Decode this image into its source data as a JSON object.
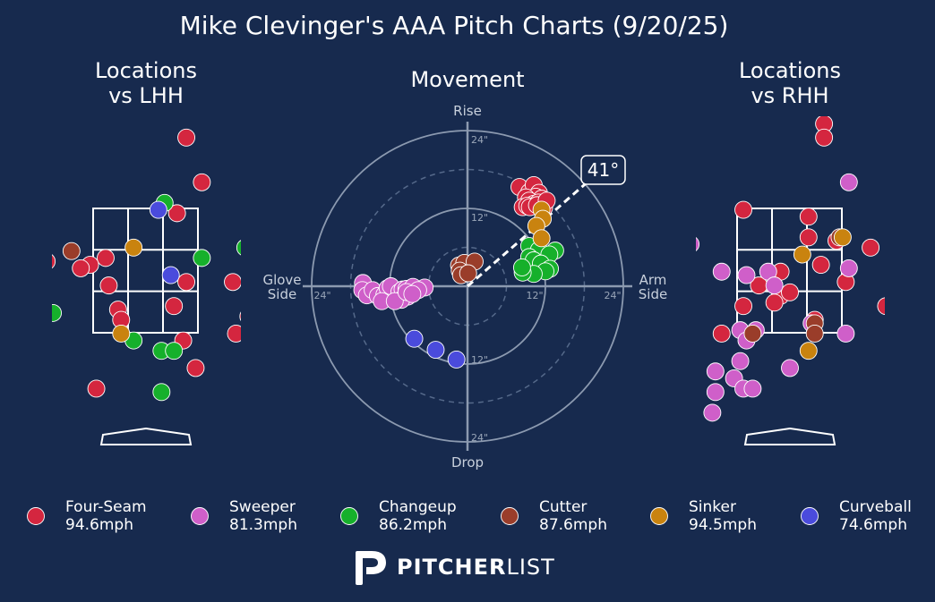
{
  "chart_data": {
    "type": "scatter",
    "title": "Mike Clevinger's AAA Pitch Charts (9/20/25)",
    "colors": {
      "background": "#172a4e",
      "four_seam": "#d4263f",
      "sweeper": "#cf5fc9",
      "changeup": "#16b02b",
      "cutter": "#9a3d2a",
      "sinker": "#c9830f",
      "curveball": "#4a4bdc"
    },
    "pitches": [
      {
        "key": "four_seam",
        "name": "Four-Seam",
        "velo": "94.6mph"
      },
      {
        "key": "sweeper",
        "name": "Sweeper",
        "velo": "81.3mph"
      },
      {
        "key": "changeup",
        "name": "Changeup",
        "velo": "86.2mph"
      },
      {
        "key": "cutter",
        "name": "Cutter",
        "velo": "87.6mph"
      },
      {
        "key": "sinker",
        "name": "Sinker",
        "velo": "94.5mph"
      },
      {
        "key": "curveball",
        "name": "Curveball",
        "velo": "74.6mph"
      }
    ],
    "locations_lhh": {
      "title_line1": "Locations",
      "title_line2": "vs LHH",
      "points": [
        {
          "pitch": "four_seam",
          "x": 0.65,
          "y": 4.45
        },
        {
          "pitch": "four_seam",
          "x": 0.9,
          "y": 3.8
        },
        {
          "pitch": "four_seam",
          "x": 0.5,
          "y": 3.35
        },
        {
          "pitch": "four_seam",
          "x": -1.6,
          "y": 2.65
        },
        {
          "pitch": "four_seam",
          "x": -0.65,
          "y": 2.7
        },
        {
          "pitch": "four_seam",
          "x": -0.9,
          "y": 2.6
        },
        {
          "pitch": "four_seam",
          "x": -1.05,
          "y": 2.55
        },
        {
          "pitch": "four_seam",
          "x": -0.6,
          "y": 2.3
        },
        {
          "pitch": "four_seam",
          "x": 0.65,
          "y": 2.35
        },
        {
          "pitch": "four_seam",
          "x": 1.4,
          "y": 2.35
        },
        {
          "pitch": "four_seam",
          "x": 1.75,
          "y": 2.7
        },
        {
          "pitch": "four_seam",
          "x": 0.45,
          "y": 2.0
        },
        {
          "pitch": "four_seam",
          "x": -0.45,
          "y": 1.95
        },
        {
          "pitch": "four_seam",
          "x": -0.4,
          "y": 1.8
        },
        {
          "pitch": "four_seam",
          "x": 1.65,
          "y": 1.85
        },
        {
          "pitch": "four_seam",
          "x": 1.45,
          "y": 1.6
        },
        {
          "pitch": "four_seam",
          "x": 0.6,
          "y": 1.5
        },
        {
          "pitch": "four_seam",
          "x": 0.8,
          "y": 1.1
        },
        {
          "pitch": "four_seam",
          "x": -0.8,
          "y": 0.8
        },
        {
          "pitch": "sweeper",
          "x": 2.1,
          "y": 2.0
        },
        {
          "pitch": "changeup",
          "x": 0.3,
          "y": 3.5
        },
        {
          "pitch": "changeup",
          "x": 1.7,
          "y": 3.35
        },
        {
          "pitch": "changeup",
          "x": 1.9,
          "y": 3.2
        },
        {
          "pitch": "changeup",
          "x": 0.9,
          "y": 2.7
        },
        {
          "pitch": "changeup",
          "x": 1.6,
          "y": 2.85
        },
        {
          "pitch": "changeup",
          "x": -1.5,
          "y": 1.9
        },
        {
          "pitch": "changeup",
          "x": -0.2,
          "y": 1.5
        },
        {
          "pitch": "changeup",
          "x": 0.25,
          "y": 1.35
        },
        {
          "pitch": "changeup",
          "x": 0.45,
          "y": 1.35
        },
        {
          "pitch": "changeup",
          "x": 0.25,
          "y": 0.75
        },
        {
          "pitch": "changeup",
          "x": 2.25,
          "y": 0.8
        },
        {
          "pitch": "changeup",
          "x": 0.85,
          "y": -0.55
        },
        {
          "pitch": "changeup",
          "x": -1.9,
          "y": -0.65
        },
        {
          "pitch": "changeup",
          "x": -2.15,
          "y": 0.8
        },
        {
          "pitch": "cutter",
          "x": -1.2,
          "y": 2.8
        },
        {
          "pitch": "sinker",
          "x": -0.2,
          "y": 2.85
        },
        {
          "pitch": "sinker",
          "x": -0.4,
          "y": 1.6
        },
        {
          "pitch": "curveball",
          "x": 0.2,
          "y": 3.4
        },
        {
          "pitch": "curveball",
          "x": 0.4,
          "y": 2.45
        }
      ]
    },
    "locations_rhh": {
      "title_line1": "Locations",
      "title_line2": "vs RHH",
      "points": [
        {
          "pitch": "four_seam",
          "x": 0.55,
          "y": 4.65
        },
        {
          "pitch": "four_seam",
          "x": 0.55,
          "y": 4.45
        },
        {
          "pitch": "four_seam",
          "x": -0.75,
          "y": 3.4
        },
        {
          "pitch": "four_seam",
          "x": 0.3,
          "y": 3.3
        },
        {
          "pitch": "four_seam",
          "x": 0.3,
          "y": 3.0
        },
        {
          "pitch": "four_seam",
          "x": 0.75,
          "y": 2.95
        },
        {
          "pitch": "four_seam",
          "x": 1.3,
          "y": 2.85
        },
        {
          "pitch": "four_seam",
          "x": -0.15,
          "y": 2.5
        },
        {
          "pitch": "four_seam",
          "x": 0.5,
          "y": 2.6
        },
        {
          "pitch": "four_seam",
          "x": -0.5,
          "y": 2.3
        },
        {
          "pitch": "four_seam",
          "x": -0.15,
          "y": 2.15
        },
        {
          "pitch": "four_seam",
          "x": -0.25,
          "y": 2.05
        },
        {
          "pitch": "four_seam",
          "x": 0.0,
          "y": 2.2
        },
        {
          "pitch": "four_seam",
          "x": 0.9,
          "y": 2.35
        },
        {
          "pitch": "four_seam",
          "x": -0.75,
          "y": 2.0
        },
        {
          "pitch": "four_seam",
          "x": 0.4,
          "y": 1.8
        },
        {
          "pitch": "four_seam",
          "x": 1.55,
          "y": 2.0
        },
        {
          "pitch": "four_seam",
          "x": -1.1,
          "y": 1.6
        },
        {
          "pitch": "sweeper",
          "x": 0.95,
          "y": 3.8
        },
        {
          "pitch": "sweeper",
          "x": -1.6,
          "y": 2.9
        },
        {
          "pitch": "sweeper",
          "x": 0.95,
          "y": 2.55
        },
        {
          "pitch": "sweeper",
          "x": -1.1,
          "y": 2.5
        },
        {
          "pitch": "sweeper",
          "x": -0.7,
          "y": 2.45
        },
        {
          "pitch": "sweeper",
          "x": -0.35,
          "y": 2.5
        },
        {
          "pitch": "sweeper",
          "x": -0.25,
          "y": 2.3
        },
        {
          "pitch": "sweeper",
          "x": 0.35,
          "y": 1.75
        },
        {
          "pitch": "sweeper",
          "x": -0.8,
          "y": 1.65
        },
        {
          "pitch": "sweeper",
          "x": -0.55,
          "y": 1.65
        },
        {
          "pitch": "sweeper",
          "x": -0.7,
          "y": 1.5
        },
        {
          "pitch": "sweeper",
          "x": 0.9,
          "y": 1.6
        },
        {
          "pitch": "sweeper",
          "x": -0.8,
          "y": 1.2
        },
        {
          "pitch": "sweeper",
          "x": 0.0,
          "y": 1.1
        },
        {
          "pitch": "sweeper",
          "x": -1.2,
          "y": 1.05
        },
        {
          "pitch": "sweeper",
          "x": -0.9,
          "y": 0.95
        },
        {
          "pitch": "sweeper",
          "x": -0.75,
          "y": 0.8
        },
        {
          "pitch": "sweeper",
          "x": -0.6,
          "y": 0.8
        },
        {
          "pitch": "sweeper",
          "x": -1.2,
          "y": 0.75
        },
        {
          "pitch": "sweeper",
          "x": -1.25,
          "y": 0.45
        },
        {
          "pitch": "cutter",
          "x": 0.8,
          "y": 3.0
        },
        {
          "pitch": "cutter",
          "x": -0.6,
          "y": 1.6
        },
        {
          "pitch": "cutter",
          "x": 0.4,
          "y": 1.75
        },
        {
          "pitch": "cutter",
          "x": 0.4,
          "y": 1.6
        },
        {
          "pitch": "sinker",
          "x": 0.2,
          "y": 2.75
        },
        {
          "pitch": "sinker",
          "x": 0.85,
          "y": 3.0
        },
        {
          "pitch": "sinker",
          "x": 0.3,
          "y": 1.35
        }
      ]
    },
    "movement": {
      "title": "Movement",
      "top_label": "Rise",
      "bottom_label": "Drop",
      "left_label_line1": "Glove",
      "left_label_line2": "Side",
      "right_label_line1": "Arm",
      "right_label_line2": "Side",
      "ring_labels": [
        "12\"",
        "24\""
      ],
      "rings": [
        6,
        12,
        18,
        24
      ],
      "x_unit": "inches",
      "y_unit": "inches",
      "arm_angle_label": "41°",
      "arm_angle": 41,
      "points": [
        {
          "pitch": "four_seam",
          "x": 8,
          "y": 15.3
        },
        {
          "pitch": "four_seam",
          "x": 9.5,
          "y": 14.5
        },
        {
          "pitch": "four_seam",
          "x": 10.2,
          "y": 15.6
        },
        {
          "pitch": "four_seam",
          "x": 11,
          "y": 14.4
        },
        {
          "pitch": "four_seam",
          "x": 10.5,
          "y": 13.8
        },
        {
          "pitch": "four_seam",
          "x": 9,
          "y": 13.7
        },
        {
          "pitch": "four_seam",
          "x": 11.4,
          "y": 13.5
        },
        {
          "pitch": "four_seam",
          "x": 9.5,
          "y": 13.2
        },
        {
          "pitch": "four_seam",
          "x": 10.2,
          "y": 12.7
        },
        {
          "pitch": "four_seam",
          "x": 11.6,
          "y": 12.6
        },
        {
          "pitch": "four_seam",
          "x": 8.5,
          "y": 12.2
        },
        {
          "pitch": "four_seam",
          "x": 11.8,
          "y": 12.1
        },
        {
          "pitch": "four_seam",
          "x": 9.2,
          "y": 12.4
        },
        {
          "pitch": "four_seam",
          "x": 10.9,
          "y": 12.9
        },
        {
          "pitch": "four_seam",
          "x": 9.6,
          "y": 12.2
        },
        {
          "pitch": "four_seam",
          "x": 10.7,
          "y": 12.5
        },
        {
          "pitch": "four_seam",
          "x": 12.2,
          "y": 13.2
        },
        {
          "pitch": "sweeper",
          "x": -16.1,
          "y": 0.5
        },
        {
          "pitch": "sweeper",
          "x": -16.2,
          "y": -0.6
        },
        {
          "pitch": "sweeper",
          "x": -15.5,
          "y": -1.4
        },
        {
          "pitch": "sweeper",
          "x": -14.6,
          "y": -0.6
        },
        {
          "pitch": "sweeper",
          "x": -13.8,
          "y": -1.5
        },
        {
          "pitch": "sweeper",
          "x": -12.8,
          "y": -1.3
        },
        {
          "pitch": "sweeper",
          "x": -12,
          "y": -1.6
        },
        {
          "pitch": "sweeper",
          "x": -11.4,
          "y": -1.0
        },
        {
          "pitch": "sweeper",
          "x": -12.3,
          "y": -0.3
        },
        {
          "pitch": "sweeper",
          "x": -11.8,
          "y": 0.0
        },
        {
          "pitch": "sweeper",
          "x": -10.5,
          "y": -0.9
        },
        {
          "pitch": "sweeper",
          "x": -10,
          "y": -0.5
        },
        {
          "pitch": "sweeper",
          "x": -9.4,
          "y": -0.4
        },
        {
          "pitch": "sweeper",
          "x": -8.4,
          "y": -0.1
        },
        {
          "pitch": "sweeper",
          "x": -6.6,
          "y": -0.2
        },
        {
          "pitch": "sweeper",
          "x": -7.6,
          "y": -0.6
        },
        {
          "pitch": "sweeper",
          "x": -9.2,
          "y": -1.6
        },
        {
          "pitch": "sweeper",
          "x": -10.2,
          "y": -2.1
        },
        {
          "pitch": "sweeper",
          "x": -13.2,
          "y": -2.3
        },
        {
          "pitch": "sweeper",
          "x": -11.2,
          "y": -2.3
        },
        {
          "pitch": "sweeper",
          "x": -9.4,
          "y": -0.9
        },
        {
          "pitch": "sweeper",
          "x": -8.5,
          "y": -1.2
        },
        {
          "pitch": "changeup",
          "x": 9.5,
          "y": 6.2
        },
        {
          "pitch": "changeup",
          "x": 11,
          "y": 5.6
        },
        {
          "pitch": "changeup",
          "x": 13.5,
          "y": 5.5
        },
        {
          "pitch": "changeup",
          "x": 12.6,
          "y": 4.9
        },
        {
          "pitch": "changeup",
          "x": 9.5,
          "y": 4.5
        },
        {
          "pitch": "changeup",
          "x": 10.2,
          "y": 4.0
        },
        {
          "pitch": "changeup",
          "x": 11.3,
          "y": 3.5
        },
        {
          "pitch": "changeup",
          "x": 12.7,
          "y": 2.7
        },
        {
          "pitch": "changeup",
          "x": 12,
          "y": 2.3
        },
        {
          "pitch": "changeup",
          "x": 10.2,
          "y": 1.9
        },
        {
          "pitch": "changeup",
          "x": 8.5,
          "y": 2.1
        },
        {
          "pitch": "changeup",
          "x": 8.4,
          "y": 2.9
        },
        {
          "pitch": "cutter",
          "x": -1.3,
          "y": 3.2
        },
        {
          "pitch": "cutter",
          "x": -0.5,
          "y": 3.6
        },
        {
          "pitch": "cutter",
          "x": 1.1,
          "y": 3.8
        },
        {
          "pitch": "cutter",
          "x": -1.2,
          "y": 2.4
        },
        {
          "pitch": "cutter",
          "x": -1.0,
          "y": 1.7
        },
        {
          "pitch": "cutter",
          "x": 0.1,
          "y": 2.0
        },
        {
          "pitch": "sinker",
          "x": 11.4,
          "y": 11.8
        },
        {
          "pitch": "sinker",
          "x": 11.6,
          "y": 10.4
        },
        {
          "pitch": "sinker",
          "x": 10.6,
          "y": 9.3
        },
        {
          "pitch": "sinker",
          "x": 11.4,
          "y": 7.4
        },
        {
          "pitch": "curveball",
          "x": -8.2,
          "y": -8.1
        },
        {
          "pitch": "curveball",
          "x": -4.9,
          "y": -9.8
        },
        {
          "pitch": "curveball",
          "x": -1.7,
          "y": -11.3
        }
      ]
    }
  },
  "brand": {
    "bold": "PITCHER",
    "light": "LIST"
  }
}
